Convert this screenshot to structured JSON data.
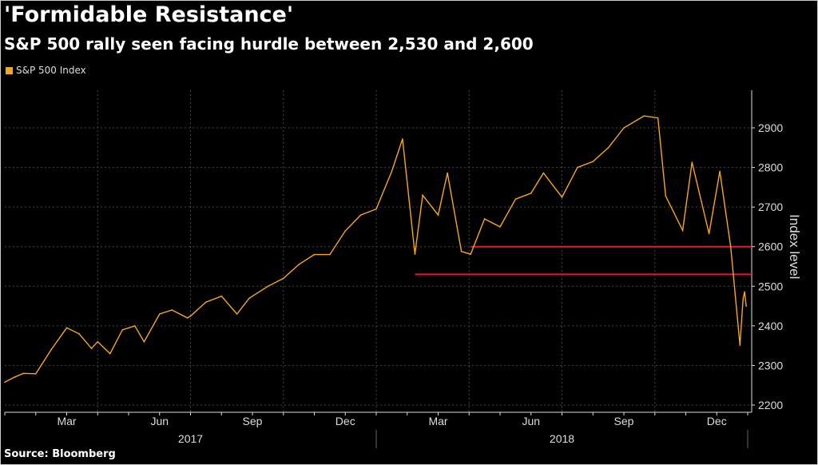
{
  "title": "'Formidable Resistance'",
  "subtitle": "S&P 500 rally seen facing hurdle between 2,530 and 2,600",
  "source": "Source: Bloomberg",
  "chart_data": {
    "type": "line",
    "title": "'Formidable Resistance'",
    "subtitle": "S&P 500 rally seen facing hurdle between 2,530 and 2,600",
    "ylabel": "Index level",
    "xlabel": "",
    "ylim": [
      2200,
      2950
    ],
    "yticks": [
      "2200",
      "2300",
      "2400",
      "2500",
      "2600",
      "2700",
      "2800",
      "2900"
    ],
    "xticks": [
      {
        "label": "Mar",
        "m": 2
      },
      {
        "label": "Jun",
        "m": 5
      },
      {
        "label": "Sep",
        "m": 8
      },
      {
        "label": "Dec",
        "m": 11
      },
      {
        "label": "Mar",
        "m": 14
      },
      {
        "label": "Jun",
        "m": 17
      },
      {
        "label": "Sep",
        "m": 20
      },
      {
        "label": "Dec",
        "m": 23
      }
    ],
    "years": [
      {
        "label": "2017",
        "m": 6
      },
      {
        "label": "2018",
        "m": 18
      }
    ],
    "legend": {
      "position": "top-left",
      "entries": [
        "S&P 500 Index"
      ]
    },
    "series": [
      {
        "name": "S&P 500 Index",
        "color": "#f5a623",
        "points": [
          [
            0,
            2258
          ],
          [
            0.3,
            2270
          ],
          [
            0.6,
            2280
          ],
          [
            1,
            2279
          ],
          [
            1.5,
            2340
          ],
          [
            2,
            2395
          ],
          [
            2.4,
            2380
          ],
          [
            2.8,
            2343
          ],
          [
            3,
            2360
          ],
          [
            3.4,
            2330
          ],
          [
            3.8,
            2390
          ],
          [
            4.2,
            2400
          ],
          [
            4.5,
            2360
          ],
          [
            5,
            2430
          ],
          [
            5.4,
            2440
          ],
          [
            5.9,
            2420
          ],
          [
            6,
            2425
          ],
          [
            6.5,
            2460
          ],
          [
            7,
            2475
          ],
          [
            7.5,
            2430
          ],
          [
            7.9,
            2470
          ],
          [
            8.5,
            2500
          ],
          [
            9,
            2520
          ],
          [
            9.5,
            2555
          ],
          [
            10,
            2580
          ],
          [
            10.5,
            2580
          ],
          [
            11,
            2640
          ],
          [
            11.5,
            2680
          ],
          [
            12,
            2695
          ],
          [
            12.5,
            2790
          ],
          [
            12.85,
            2872
          ],
          [
            13.25,
            2581
          ],
          [
            13.5,
            2730
          ],
          [
            14,
            2680
          ],
          [
            14.3,
            2786
          ],
          [
            14.75,
            2588
          ],
          [
            15.05,
            2581
          ],
          [
            15.5,
            2670
          ],
          [
            16,
            2650
          ],
          [
            16.5,
            2720
          ],
          [
            17,
            2735
          ],
          [
            17.4,
            2786
          ],
          [
            18,
            2725
          ],
          [
            18.5,
            2800
          ],
          [
            19,
            2815
          ],
          [
            19.5,
            2850
          ],
          [
            20,
            2900
          ],
          [
            20.65,
            2930
          ],
          [
            21.1,
            2925
          ],
          [
            21.35,
            2728
          ],
          [
            21.9,
            2641
          ],
          [
            22.2,
            2813
          ],
          [
            22.75,
            2633
          ],
          [
            23.1,
            2790
          ],
          [
            23.45,
            2600
          ],
          [
            23.75,
            2351
          ],
          [
            23.85,
            2468
          ],
          [
            23.9,
            2486
          ],
          [
            23.95,
            2450
          ]
        ]
      }
    ],
    "annotations": [
      {
        "type": "hline",
        "value": 2530,
        "from_m": 13.25,
        "color": "#e8192c"
      },
      {
        "type": "hline",
        "value": 2600,
        "from_m": 15.05,
        "color": "#e8192c"
      }
    ],
    "grid": true
  }
}
